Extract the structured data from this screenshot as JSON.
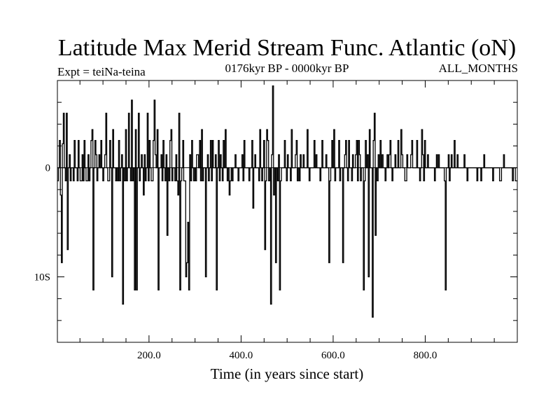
{
  "chart_data": {
    "type": "line",
    "title": "Latitude Max Merid Stream Func. Atlantic (oN)",
    "subtitle_left": "Expt = teiNa-teina",
    "subtitle_center": "0176kyr BP - 0000kyr BP",
    "subtitle_right": "ALL_MONTHS",
    "xlabel": "Time (in years since start)",
    "ylabel": "",
    "xlim": [
      1,
      1000
    ],
    "ylim": [
      -16,
      8
    ],
    "x_ticks": [
      {
        "value": 200,
        "label": "200.0"
      },
      {
        "value": 400,
        "label": "400.0"
      },
      {
        "value": 600,
        "label": "600.0"
      },
      {
        "value": 800,
        "label": "800.0"
      }
    ],
    "y_ticks": [
      {
        "value": 0,
        "label": "0"
      },
      {
        "value": -10,
        "label": "10S"
      }
    ],
    "x_minor_step": 50,
    "y_minor_step": 2,
    "series": [
      {
        "name": "latitude of max meridional stream function",
        "values": [
          -1.2,
          0,
          2.5,
          -2.5,
          -8.7,
          2.2,
          5,
          0,
          -1.2,
          5,
          -7.5,
          0,
          1.2,
          -1.2,
          0,
          0,
          -1.2,
          2.5,
          0,
          0,
          -1.2,
          2.5,
          0,
          -1.2,
          -1.2,
          1.2,
          -1.2,
          2.5,
          0,
          -1.2,
          -1.2,
          1.2,
          -1.2,
          0,
          2.5,
          3.5,
          -11.2,
          0,
          2.5,
          1.2,
          -1.2,
          0,
          1.2,
          0,
          2.5,
          0,
          -1.2,
          0,
          1.2,
          5,
          0,
          -1.2,
          -1.2,
          2.5,
          0,
          -10,
          3.5,
          0,
          0,
          -1.2,
          0,
          -1.2,
          2.5,
          -1.2,
          0,
          1.2,
          -12.5,
          0,
          -1.2,
          3.5,
          -1.2,
          0,
          5,
          0,
          -1.2,
          6.2,
          -1.2,
          0,
          -11.2,
          3.5,
          -11.2,
          0,
          5,
          -1.2,
          0,
          1.2,
          0,
          -2.5,
          1.2,
          -1.2,
          0,
          5,
          -1.2,
          2.5,
          0,
          -1.2,
          -1.2,
          2.5,
          6.2,
          1.2,
          0,
          3.5,
          -11.2,
          0,
          0,
          1.2,
          -1.2,
          2.5,
          0,
          -1.2,
          1.2,
          -6.2,
          0,
          -1.2,
          2.5,
          3.5,
          -1.2,
          0,
          0,
          -1.2,
          1.2,
          -1.2,
          -2.5,
          5,
          -11.2,
          -1.2,
          0,
          2.5,
          -1.2,
          -1.2,
          -10,
          -8.7,
          -5,
          -11.2,
          1.2,
          -1.2,
          2.5,
          0,
          -1.2,
          0,
          -1.2,
          1.2,
          1.2,
          0,
          2.5,
          -1.2,
          3.5,
          -1.2,
          0,
          0,
          -10,
          0,
          1.2,
          -1.2,
          0,
          2.5,
          -1.2,
          2.5,
          0,
          0,
          1.2,
          -11.2,
          0,
          2.5,
          -1.2,
          1.2,
          0,
          -1.2,
          2.5,
          0,
          3.5,
          0,
          -1.2,
          0,
          -2.5,
          -1.2,
          0,
          -1.2,
          0,
          0,
          1.2,
          0,
          0,
          -1.2,
          0,
          0,
          0,
          1.2,
          -1.2,
          2.5,
          0,
          0,
          0,
          0,
          -1.2,
          0,
          0,
          2.5,
          -3.7,
          0,
          1.2,
          0,
          0,
          0,
          -1.2,
          3.5,
          0,
          -1.2,
          0,
          2.5,
          -7.5,
          -1.2,
          3.5,
          2.5,
          -1.2,
          0,
          -12.5,
          1.2,
          7.5,
          -2.5,
          0,
          -8.7,
          0,
          -1.2,
          1.2,
          -11.2,
          -1.2,
          0,
          0,
          0,
          2.5,
          0,
          -1.2,
          1.2,
          0,
          0,
          -1.2,
          3.5,
          0,
          0,
          0,
          1.2,
          2.5,
          -1.2,
          0,
          -1.2,
          1.2,
          0,
          0,
          1.2,
          0,
          0,
          0,
          3.5,
          0,
          -1.2,
          0,
          0,
          0,
          0,
          2.5,
          0,
          1.2,
          0,
          0,
          0,
          -1.2,
          0,
          2.5,
          0,
          0,
          0,
          1.2,
          0,
          0,
          -8.7,
          -1.2,
          0,
          2.5,
          0,
          3.5,
          -1.2,
          0,
          0,
          0,
          2.5,
          -1.2,
          0,
          0,
          -8.7,
          0,
          1.2,
          2.5,
          0,
          -1.2,
          2.5,
          0,
          0,
          -1.2,
          1.2,
          0,
          0,
          1.2,
          2.5,
          -1.2,
          2.5,
          1.2,
          -1.2,
          0,
          0,
          -11.2,
          -1.2,
          2.5,
          0,
          1.2,
          -10,
          3.5,
          0,
          0,
          -13.7,
          2.5,
          5,
          -6.2,
          0,
          -1.2,
          1.2,
          0,
          2.5,
          0,
          1.2,
          0,
          0,
          -1.2,
          0,
          1.2,
          0,
          1.2,
          2.5,
          0,
          -1.2,
          0,
          0,
          1.2,
          0,
          0,
          2.5,
          0,
          0,
          3.5,
          1.2,
          0,
          0,
          -1.2,
          -1.2,
          1.2,
          0,
          0,
          0,
          1.2,
          2.5,
          0,
          0,
          0,
          0,
          2.5,
          0,
          0,
          -1.2,
          0,
          3.5,
          1.2,
          -1.2,
          2.5,
          0,
          0,
          1.2,
          0,
          0,
          0,
          0,
          0,
          0,
          -1.2,
          0,
          1.2,
          0,
          1.2,
          0,
          0,
          0,
          0,
          0,
          -1.2,
          -11.2,
          0,
          0,
          1.2,
          -1.2,
          0,
          1.2,
          0,
          0,
          2.5,
          0,
          0,
          1.2,
          0,
          0,
          0,
          0,
          0,
          0,
          1.2,
          0,
          0,
          -1.2,
          0,
          0,
          0,
          0,
          0,
          0,
          0,
          0,
          0,
          -1.2,
          0,
          0,
          0,
          -1.2,
          0,
          0,
          1.2,
          0,
          0,
          0,
          0,
          0,
          0,
          0,
          0,
          -1.2,
          0,
          0,
          0,
          0,
          0,
          0,
          -1.2,
          -1.2,
          0,
          0,
          1.2,
          0,
          0,
          0,
          0,
          0,
          0,
          0,
          0,
          -1.2,
          0,
          0,
          -1.2,
          -1.2
        ]
      }
    ]
  }
}
